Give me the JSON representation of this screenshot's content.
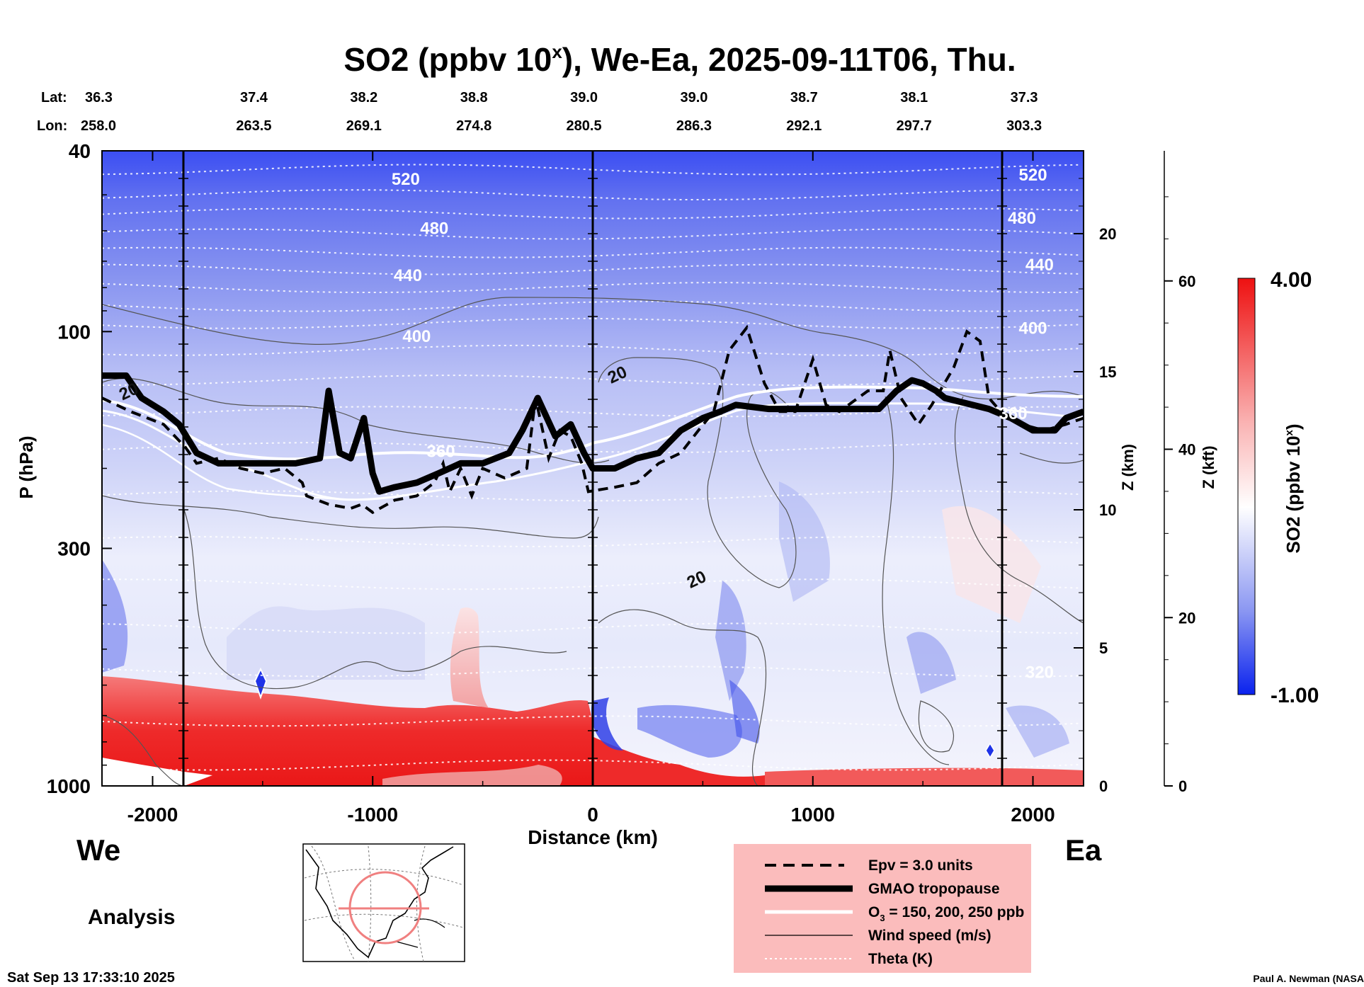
{
  "chart_data": {
    "type": "heatmap",
    "title": {
      "main": "SO2 (ppbv 10",
      "sup": "x",
      "rest": "), We-Ea, 2025-09-11T06, Thu."
    },
    "xlabel": "Distance (km)",
    "ylabel": "P (hPa)",
    "xlim": [
      -2230,
      2230
    ],
    "x_ticks": [
      -2000,
      -1000,
      0,
      1000,
      2000
    ],
    "x_tick_labels": [
      "-2000",
      "-1000",
      "0",
      "1000",
      "2000"
    ],
    "y_ticks": [
      40,
      100,
      300,
      1000
    ],
    "y_tick_labels": [
      "40",
      "100",
      "300",
      "1000"
    ],
    "ylim": [
      1000,
      40
    ],
    "z_km": {
      "label": "Z (km)",
      "ticks": [
        0,
        5,
        10,
        15,
        20
      ],
      "tick_labels": [
        "0",
        "5",
        "10",
        "15",
        "20"
      ]
    },
    "z_kft": {
      "label": "Z (kft)",
      "ticks": [
        0,
        20,
        40,
        60
      ],
      "tick_labels": [
        "0",
        "20",
        "40",
        "60"
      ]
    },
    "lat_label": "Lat:",
    "lon_label": "Lon:",
    "stations": [
      {
        "x": -2020,
        "lat": "36.3",
        "lon": "258.0"
      },
      {
        "x": -1540,
        "lat": "37.4",
        "lon": "263.5"
      },
      {
        "x": -1040,
        "lat": "38.2",
        "lon": "269.1"
      },
      {
        "x": -540,
        "lat": "38.8",
        "lon": "274.8"
      },
      {
        "x": -40,
        "lat": "39.0",
        "lon": "280.5"
      },
      {
        "x": 460,
        "lat": "39.0",
        "lon": "286.3"
      },
      {
        "x": 960,
        "lat": "38.7",
        "lon": "292.1"
      },
      {
        "x": 1460,
        "lat": "38.1",
        "lon": "297.7"
      },
      {
        "x": 1960,
        "lat": "37.3",
        "lon": "303.3"
      }
    ],
    "vertical_markers": [
      -1860,
      0,
      1860
    ],
    "theta_labels": [
      {
        "text": "520",
        "x": -850,
        "p": 46
      },
      {
        "text": "480",
        "x": -720,
        "p": 59
      },
      {
        "text": "440",
        "x": -840,
        "p": 75
      },
      {
        "text": "400",
        "x": -800,
        "p": 102
      },
      {
        "text": "360",
        "x": -690,
        "p": 183
      },
      {
        "text": "520",
        "x": 2000,
        "p": 45
      },
      {
        "text": "480",
        "x": 1950,
        "p": 56
      },
      {
        "text": "440",
        "x": 2030,
        "p": 71
      },
      {
        "text": "400",
        "x": 2000,
        "p": 98
      },
      {
        "text": "360",
        "x": 1910,
        "p": 151
      },
      {
        "text": "320",
        "x": 2030,
        "p": 560
      }
    ],
    "wind_labels": [
      {
        "text": "20",
        "x": -2110,
        "p": 135
      },
      {
        "text": "20",
        "x": 110,
        "p": 124
      },
      {
        "text": "20",
        "x": 470,
        "p": 350
      }
    ],
    "colorbar": {
      "label": "SO2 (ppbv 10",
      "label_sup": "x",
      "label_end": ")",
      "max_label": "4.00",
      "min_label": "-1.00",
      "min": -1.0,
      "max": 4.0
    },
    "legend": [
      {
        "style": "dashed",
        "text": "Epv = 3.0 units"
      },
      {
        "style": "thick",
        "text": "GMAO tropopause"
      },
      {
        "style": "white",
        "text": "O",
        "sub": "3",
        "text_after": " = 150, 200, 250 ppb"
      },
      {
        "style": "thin",
        "text": "Wind speed (m/s)"
      },
      {
        "style": "dotted",
        "text": "Theta (K)"
      }
    ],
    "series": [
      {
        "name": "GMAO tropopause",
        "points": [
          [
            -2230,
            125
          ],
          [
            -2120,
            125
          ],
          [
            -2050,
            140
          ],
          [
            -1950,
            150
          ],
          [
            -1880,
            160
          ],
          [
            -1800,
            185
          ],
          [
            -1700,
            195
          ],
          [
            -1600,
            195
          ],
          [
            -1500,
            195
          ],
          [
            -1350,
            195
          ],
          [
            -1240,
            190
          ],
          [
            -1200,
            135
          ],
          [
            -1150,
            185
          ],
          [
            -1100,
            190
          ],
          [
            -1040,
            155
          ],
          [
            -1000,
            205
          ],
          [
            -970,
            225
          ],
          [
            -900,
            220
          ],
          [
            -800,
            215
          ],
          [
            -700,
            205
          ],
          [
            -600,
            195
          ],
          [
            -500,
            195
          ],
          [
            -380,
            185
          ],
          [
            -320,
            165
          ],
          [
            -250,
            140
          ],
          [
            -170,
            170
          ],
          [
            -100,
            160
          ],
          [
            -40,
            185
          ],
          [
            0,
            200
          ],
          [
            100,
            200
          ],
          [
            200,
            190
          ],
          [
            300,
            185
          ],
          [
            400,
            165
          ],
          [
            500,
            155
          ],
          [
            580,
            150
          ],
          [
            650,
            145
          ],
          [
            800,
            148
          ],
          [
            1000,
            148
          ],
          [
            1300,
            148
          ],
          [
            1380,
            135
          ],
          [
            1450,
            128
          ],
          [
            1500,
            130
          ],
          [
            1560,
            135
          ],
          [
            1600,
            140
          ],
          [
            1800,
            148
          ],
          [
            1900,
            155
          ],
          [
            2000,
            165
          ],
          [
            2100,
            165
          ],
          [
            2150,
            155
          ],
          [
            2230,
            150
          ]
        ]
      },
      {
        "name": "Epv = 3.0 units",
        "points": [
          [
            -2230,
            140
          ],
          [
            -2100,
            150
          ],
          [
            -1950,
            160
          ],
          [
            -1850,
            180
          ],
          [
            -1800,
            195
          ],
          [
            -1700,
            190
          ],
          [
            -1600,
            200
          ],
          [
            -1500,
            205
          ],
          [
            -1400,
            200
          ],
          [
            -1320,
            215
          ],
          [
            -1300,
            230
          ],
          [
            -1200,
            240
          ],
          [
            -1100,
            245
          ],
          [
            -1050,
            240
          ],
          [
            -1000,
            250
          ],
          [
            -900,
            235
          ],
          [
            -800,
            230
          ],
          [
            -720,
            215
          ],
          [
            -680,
            195
          ],
          [
            -650,
            225
          ],
          [
            -600,
            200
          ],
          [
            -550,
            230
          ],
          [
            -500,
            200
          ],
          [
            -400,
            210
          ],
          [
            -300,
            200
          ],
          [
            -260,
            140
          ],
          [
            -200,
            190
          ],
          [
            -150,
            165
          ],
          [
            -100,
            170
          ],
          [
            -50,
            195
          ],
          [
            -20,
            225
          ],
          [
            100,
            220
          ],
          [
            200,
            215
          ],
          [
            300,
            195
          ],
          [
            400,
            185
          ],
          [
            480,
            165
          ],
          [
            550,
            150
          ],
          [
            620,
            110
          ],
          [
            700,
            98
          ],
          [
            780,
            130
          ],
          [
            850,
            150
          ],
          [
            920,
            150
          ],
          [
            1000,
            115
          ],
          [
            1060,
            145
          ],
          [
            1120,
            150
          ],
          [
            1250,
            135
          ],
          [
            1320,
            135
          ],
          [
            1350,
            110
          ],
          [
            1400,
            140
          ],
          [
            1480,
            160
          ],
          [
            1540,
            145
          ],
          [
            1640,
            120
          ],
          [
            1700,
            100
          ],
          [
            1760,
            105
          ],
          [
            1800,
            140
          ],
          [
            1880,
            155
          ],
          [
            1950,
            160
          ],
          [
            2050,
            165
          ],
          [
            2150,
            160
          ],
          [
            2230,
            155
          ]
        ]
      }
    ]
  },
  "labels": {
    "we": "We",
    "ea": "Ea",
    "analysis": "Analysis",
    "timestamp": "Sat Sep 13 17:33:10 2025",
    "credit": "Paul A. Newman (NASA"
  },
  "colors": {
    "legend_bg": "#fbbcbc",
    "high": "#ee1111",
    "low": "#0a22ee",
    "mid": "#ffffff"
  }
}
